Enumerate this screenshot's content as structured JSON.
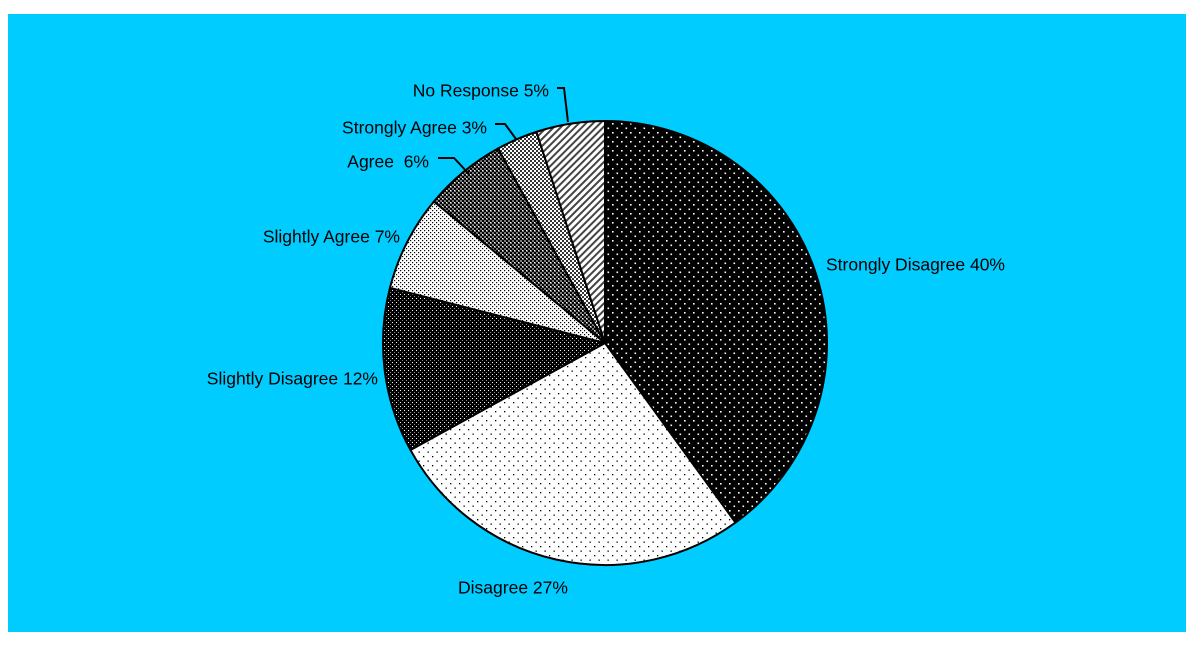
{
  "colors": {
    "background": "#00ccff",
    "outline": "#000000"
  },
  "chart_data": {
    "type": "pie",
    "start": "12 o'clock",
    "direction": "clockwise",
    "slices": [
      {
        "label": "Strongly Disagree 40%",
        "category": "Strongly Disagree",
        "value": 40,
        "pattern": "dense-black-white-dots"
      },
      {
        "label": "Disagree 27%",
        "category": "Disagree",
        "value": 27,
        "pattern": "sparse-dots-on-white"
      },
      {
        "label": "Slightly Disagree 12%",
        "category": "Slightly Disagree",
        "value": 12,
        "pattern": "dark-dotted"
      },
      {
        "label": "Slightly Agree 7%",
        "category": "Slightly Agree",
        "value": 7,
        "pattern": "fine-dots-on-white"
      },
      {
        "label": "Agree  6%",
        "category": "Agree",
        "value": 6,
        "pattern": "dark-crosshatch"
      },
      {
        "label": "Strongly Agree 3%",
        "category": "Strongly Agree",
        "value": 3,
        "pattern": "light-checker"
      },
      {
        "label": "No Response 5%",
        "category": "No Response",
        "value": 5,
        "pattern": "diagonal-lines"
      }
    ]
  }
}
